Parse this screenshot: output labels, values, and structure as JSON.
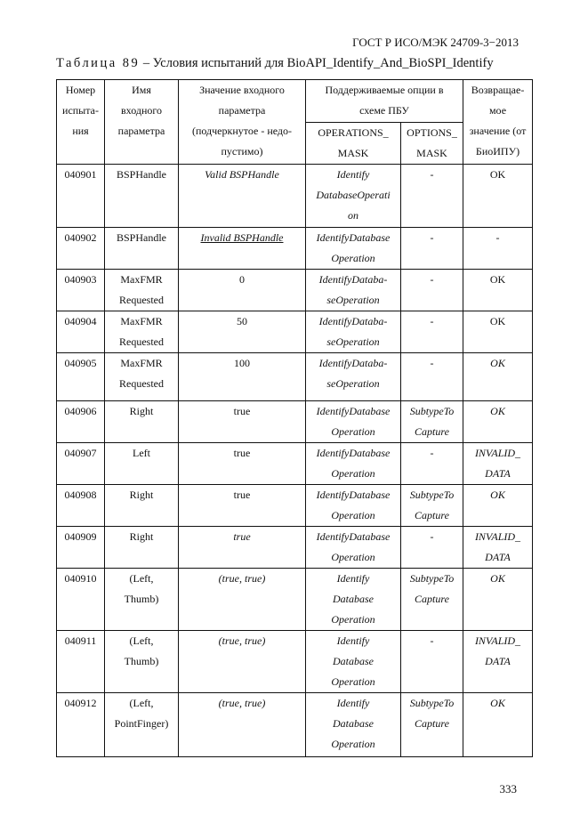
{
  "header": {
    "standard": "ГОСТ Р ИСО/МЭК 24709-3−2013"
  },
  "caption": {
    "label": "Таблица 89",
    "text": " – Условия испытаний для BioAPI_Identify_And_BioSPI_Identify"
  },
  "table": {
    "headers": {
      "number": "Номер\nиспыта-\nния",
      "name": "Имя\nвходного\nпараметра",
      "value": "Значение входного\nпараметра\n(подчеркнутое - недо-\nпустимо)",
      "options": "Поддерживаемые опции в\nсхеме ПБУ",
      "operations_mask": "OPERATIONS_\nMASK",
      "options_mask": "OPTIONS_\nMASK",
      "returned": "Возвращае-\nмое\nзначение (от\nБиоИПУ)"
    },
    "rows": [
      {
        "cells": [
          {
            "t": "040901"
          },
          {
            "t": "BSPHandle"
          },
          {
            "t": "Valid BSPHandle",
            "i": true
          },
          {
            "t": "Identify\nDatabaseOperati\non",
            "i": true
          },
          {
            "t": "-"
          },
          {
            "t": "OK"
          }
        ]
      },
      {
        "cells": [
          {
            "t": "040902"
          },
          {
            "t": "BSPHandle"
          },
          {
            "t": "Invalid BSPHandle",
            "i": true,
            "u": true
          },
          {
            "t": "IdentifyDatabase\nOperation",
            "i": true
          },
          {
            "t": "-"
          },
          {
            "t": "-"
          }
        ]
      },
      {
        "cells": [
          {
            "t": "040903"
          },
          {
            "t": "MaxFMR\nRequested"
          },
          {
            "t": "0"
          },
          {
            "t": "IdentifyDataba-\nseOperation",
            "i": true
          },
          {
            "t": "-"
          },
          {
            "t": "OK"
          }
        ]
      },
      {
        "cells": [
          {
            "t": "040904"
          },
          {
            "t": "MaxFMR\nRequested"
          },
          {
            "t": "50"
          },
          {
            "t": "IdentifyDataba-\nseOperation",
            "i": true
          },
          {
            "t": "-"
          },
          {
            "t": "OK"
          }
        ]
      },
      {
        "cells": [
          {
            "t": "040905"
          },
          {
            "t": "MaxFMR\nRequested"
          },
          {
            "t": "100"
          },
          {
            "t": "IdentifyDataba-\nseOperation",
            "i": true
          },
          {
            "t": "-"
          },
          {
            "t": "OK",
            "i": true
          }
        ]
      },
      {
        "cells": [
          {
            "t": "040906"
          },
          {
            "t": "Right"
          },
          {
            "t": "true"
          },
          {
            "t": "IdentifyDatabase\nOperation",
            "i": true
          },
          {
            "t": "SubtypeTo\nCapture",
            "i": true
          },
          {
            "t": "OK",
            "i": true
          }
        ]
      },
      {
        "cells": [
          {
            "t": "040907"
          },
          {
            "t": "Left"
          },
          {
            "t": "true"
          },
          {
            "t": "IdentifyDatabase\nOperation",
            "i": true
          },
          {
            "t": "-"
          },
          {
            "t": "INVALID_\nDATA",
            "i": true
          }
        ]
      },
      {
        "cells": [
          {
            "t": "040908"
          },
          {
            "t": "Right"
          },
          {
            "t": "true"
          },
          {
            "t": "IdentifyDatabase\nOperation",
            "i": true
          },
          {
            "t": "SubtypeTo\nCapture",
            "i": true
          },
          {
            "t": "OK",
            "i": true
          }
        ]
      },
      {
        "cells": [
          {
            "t": "040909"
          },
          {
            "t": "Right"
          },
          {
            "t": "true",
            "i": true
          },
          {
            "t": "IdentifyDatabase\nOperation",
            "i": true
          },
          {
            "t": "-"
          },
          {
            "t": "INVALID_\nDATA",
            "i": true
          }
        ]
      },
      {
        "cells": [
          {
            "t": "040910"
          },
          {
            "t": "(Left,\nThumb)"
          },
          {
            "t": "(true, true)",
            "i": true
          },
          {
            "t": "Identify\nDatabase\nOperation",
            "i": true
          },
          {
            "t": "SubtypeTo\nCapture",
            "i": true
          },
          {
            "t": "OK",
            "i": true
          }
        ]
      },
      {
        "cells": [
          {
            "t": "040911"
          },
          {
            "t": "(Left,\nThumb)"
          },
          {
            "t": "(true, true)",
            "i": true
          },
          {
            "t": "Identify\nDatabase\nOperation",
            "i": true
          },
          {
            "t": "-"
          },
          {
            "t": "INVALID_\nDATA",
            "i": true
          }
        ]
      },
      {
        "cells": [
          {
            "t": "040912"
          },
          {
            "t": "(Left,\nPointFinger)"
          },
          {
            "t": "(true, true)",
            "i": true
          },
          {
            "t": "Identify\nDatabase\nOperation",
            "i": true
          },
          {
            "t": "SubtypeTo\nCapture",
            "i": true
          },
          {
            "t": "OK",
            "i": true
          }
        ]
      }
    ]
  },
  "footer": {
    "page_number": "333"
  }
}
